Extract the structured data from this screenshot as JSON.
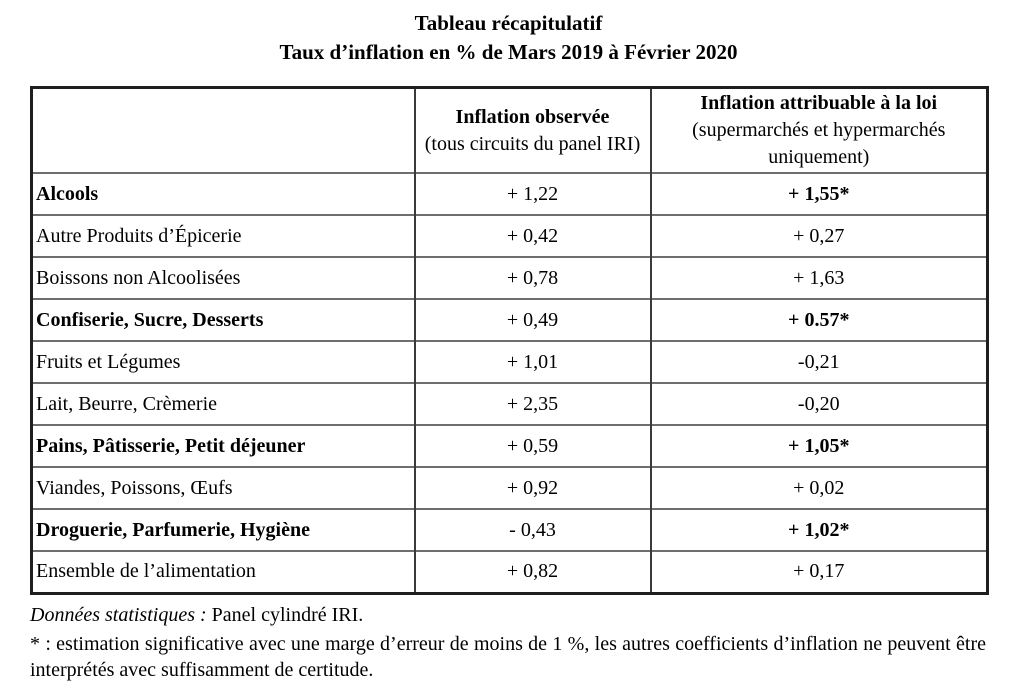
{
  "title": {
    "line1": "Tableau récapitulatif",
    "line2": "Taux d’inflation en % de Mars 2019 à Février 2020"
  },
  "table": {
    "headers": {
      "category": "",
      "col2_title": "Inflation observée",
      "col2_sub": "(tous circuits du panel IRI)",
      "col3_title": "Inflation attribuable à la loi",
      "col3_sub": "(supermarchés et hypermarchés uniquement)"
    },
    "rows": [
      {
        "label": "Alcools",
        "observed": "+ 1,22",
        "attributable": "+ 1,55*",
        "bold": true
      },
      {
        "label": "Autre Produits d’Épicerie",
        "observed": "+ 0,42",
        "attributable": "+ 0,27",
        "bold": false
      },
      {
        "label": "Boissons non Alcoolisées",
        "observed": "+ 0,78",
        "attributable": "+ 1,63",
        "bold": false
      },
      {
        "label": "Confiserie, Sucre, Desserts",
        "observed": "+ 0,49",
        "attributable": "+ 0.57*",
        "bold": true
      },
      {
        "label": "Fruits et Légumes",
        "observed": "+ 1,01",
        "attributable": "-0,21",
        "bold": false
      },
      {
        "label": "Lait, Beurre, Crèmerie",
        "observed": "+ 2,35",
        "attributable": "-0,20",
        "bold": false
      },
      {
        "label": "Pains, Pâtisserie, Petit déjeuner",
        "observed": "+ 0,59",
        "attributable": "+ 1,05*",
        "bold": true
      },
      {
        "label": "Viandes, Poissons, Œufs",
        "observed": "+ 0,92",
        "attributable": "+ 0,02",
        "bold": false
      },
      {
        "label": "Droguerie, Parfumerie, Hygiène",
        "observed": "- 0,43",
        "attributable": "+ 1,02*",
        "bold": true
      },
      {
        "label": "Ensemble de l’alimentation",
        "observed": "+ 0,82",
        "attributable": "+ 0,17",
        "bold": false
      }
    ]
  },
  "footer": {
    "source_label": "Données statistiques :",
    "source_value": "Panel cylindré IRI.",
    "note": "* : estimation significative avec une marge d’erreur de moins de 1 %, les autres coefficients d’inflation ne peuvent être interprétés avec suffisamment de certitude."
  },
  "colors": {
    "background": "#ffffff",
    "text": "#000000",
    "border_outer": "#1f1f1f",
    "border_vertical": "#3a3a3a",
    "border_horizontal": "#6e6e6e"
  }
}
